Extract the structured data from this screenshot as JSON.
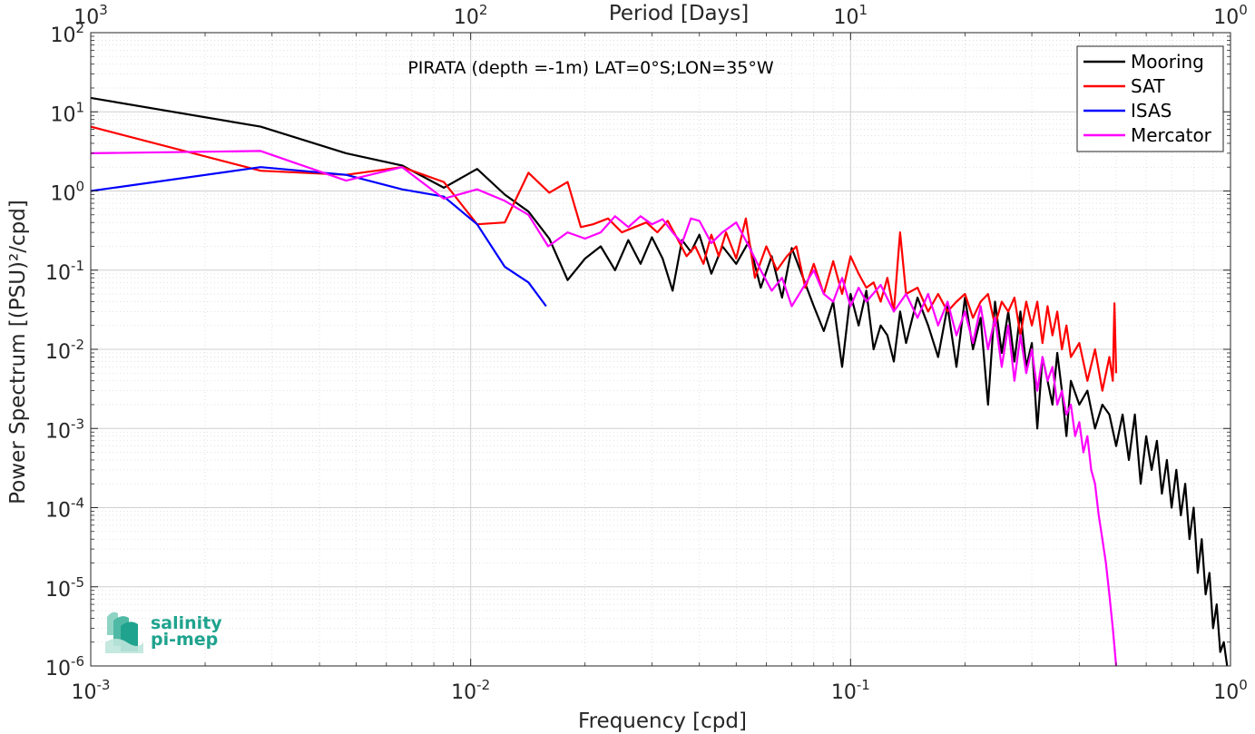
{
  "chart_data": {
    "type": "line",
    "title": "PIRATA (depth =-1m) LAT=0°S;LON=35°W",
    "xlabel": "Frequency [cpd]",
    "ylabel": "Power Spectrum [(PSU)²/cpd]",
    "top_xlabel": "Period [Days]",
    "xscale": "log",
    "yscale": "log",
    "xlim": [
      0.001,
      1
    ],
    "ylim": [
      1e-06,
      100
    ],
    "top_xlim": [
      1000,
      1
    ],
    "grid": true,
    "legend_position": "top-right",
    "x_ticks": [
      {
        "base": "10",
        "exp": "-3",
        "value": 0.001
      },
      {
        "base": "10",
        "exp": "-2",
        "value": 0.01
      },
      {
        "base": "10",
        "exp": "-1",
        "value": 0.1
      },
      {
        "base": "10",
        "exp": "0",
        "value": 1
      }
    ],
    "top_ticks": [
      {
        "base": "10",
        "exp": "3",
        "value": 1000
      },
      {
        "base": "10",
        "exp": "2",
        "value": 100
      },
      {
        "base": "10",
        "exp": "1",
        "value": 10
      },
      {
        "base": "10",
        "exp": "0",
        "value": 1
      }
    ],
    "y_ticks": [
      {
        "base": "10",
        "exp": "-6",
        "value": 1e-06
      },
      {
        "base": "10",
        "exp": "-5",
        "value": 1e-05
      },
      {
        "base": "10",
        "exp": "-4",
        "value": 0.0001
      },
      {
        "base": "10",
        "exp": "-3",
        "value": 0.001
      },
      {
        "base": "10",
        "exp": "-2",
        "value": 0.01
      },
      {
        "base": "10",
        "exp": "-1",
        "value": 0.1
      },
      {
        "base": "10",
        "exp": "0",
        "value": 1
      },
      {
        "base": "10",
        "exp": "1",
        "value": 10
      },
      {
        "base": "10",
        "exp": "2",
        "value": 100
      }
    ],
    "series": [
      {
        "name": "Mooring",
        "color": "#000000",
        "points": [
          [
            0.001,
            15
          ],
          [
            0.0028,
            6.5
          ],
          [
            0.0047,
            3.0
          ],
          [
            0.0066,
            2.1
          ],
          [
            0.0085,
            1.1
          ],
          [
            0.0104,
            1.9
          ],
          [
            0.0123,
            0.9
          ],
          [
            0.0142,
            0.55
          ],
          [
            0.0161,
            0.25
          ],
          [
            0.018,
            0.075
          ],
          [
            0.02,
            0.14
          ],
          [
            0.022,
            0.2
          ],
          [
            0.024,
            0.1
          ],
          [
            0.026,
            0.24
          ],
          [
            0.028,
            0.12
          ],
          [
            0.03,
            0.26
          ],
          [
            0.032,
            0.14
          ],
          [
            0.034,
            0.055
          ],
          [
            0.036,
            0.24
          ],
          [
            0.038,
            0.17
          ],
          [
            0.04,
            0.28
          ],
          [
            0.043,
            0.09
          ],
          [
            0.046,
            0.2
          ],
          [
            0.05,
            0.12
          ],
          [
            0.054,
            0.23
          ],
          [
            0.058,
            0.06
          ],
          [
            0.062,
            0.15
          ],
          [
            0.066,
            0.045
          ],
          [
            0.07,
            0.19
          ],
          [
            0.075,
            0.08
          ],
          [
            0.08,
            0.035
          ],
          [
            0.085,
            0.017
          ],
          [
            0.09,
            0.04
          ],
          [
            0.095,
            0.006
          ],
          [
            0.1,
            0.05
          ],
          [
            0.105,
            0.02
          ],
          [
            0.11,
            0.055
          ],
          [
            0.115,
            0.01
          ],
          [
            0.12,
            0.02
          ],
          [
            0.125,
            0.015
          ],
          [
            0.13,
            0.007
          ],
          [
            0.135,
            0.03
          ],
          [
            0.14,
            0.012
          ],
          [
            0.15,
            0.045
          ],
          [
            0.16,
            0.02
          ],
          [
            0.17,
            0.008
          ],
          [
            0.18,
            0.035
          ],
          [
            0.19,
            0.006
          ],
          [
            0.2,
            0.045
          ],
          [
            0.21,
            0.01
          ],
          [
            0.22,
            0.025
          ],
          [
            0.23,
            0.002
          ],
          [
            0.24,
            0.04
          ],
          [
            0.25,
            0.009
          ],
          [
            0.26,
            0.03
          ],
          [
            0.27,
            0.007
          ],
          [
            0.28,
            0.03
          ],
          [
            0.29,
            0.006
          ],
          [
            0.3,
            0.012
          ],
          [
            0.31,
            0.001
          ],
          [
            0.32,
            0.008
          ],
          [
            0.33,
            0.004
          ],
          [
            0.34,
            0.002
          ],
          [
            0.35,
            0.009
          ],
          [
            0.36,
            0.003
          ],
          [
            0.37,
            0.0008
          ],
          [
            0.38,
            0.004
          ],
          [
            0.4,
            0.002
          ],
          [
            0.42,
            0.003
          ],
          [
            0.44,
            0.001
          ],
          [
            0.46,
            0.002
          ],
          [
            0.48,
            0.0015
          ],
          [
            0.5,
            0.0006
          ],
          [
            0.52,
            0.0015
          ],
          [
            0.54,
            0.0004
          ],
          [
            0.56,
            0.0015
          ],
          [
            0.58,
            0.0002
          ],
          [
            0.6,
            0.0008
          ],
          [
            0.62,
            0.0003
          ],
          [
            0.64,
            0.0007
          ],
          [
            0.66,
            0.00015
          ],
          [
            0.68,
            0.0004
          ],
          [
            0.7,
            0.0001
          ],
          [
            0.72,
            0.0003
          ],
          [
            0.74,
            8e-05
          ],
          [
            0.76,
            0.0002
          ],
          [
            0.78,
            4e-05
          ],
          [
            0.8,
            0.0001
          ],
          [
            0.82,
            1.5e-05
          ],
          [
            0.84,
            4e-05
          ],
          [
            0.86,
            8e-06
          ],
          [
            0.88,
            1.5e-05
          ],
          [
            0.9,
            3e-06
          ],
          [
            0.92,
            6e-06
          ],
          [
            0.94,
            1.5e-06
          ],
          [
            0.96,
            2e-06
          ],
          [
            0.98,
            1e-06
          ]
        ]
      },
      {
        "name": "SAT",
        "color": "#ff0000",
        "points": [
          [
            0.001,
            6.5
          ],
          [
            0.0028,
            1.8
          ],
          [
            0.0047,
            1.6
          ],
          [
            0.0066,
            2.0
          ],
          [
            0.0085,
            1.3
          ],
          [
            0.0104,
            0.38
          ],
          [
            0.0123,
            0.4
          ],
          [
            0.0142,
            1.7
          ],
          [
            0.0161,
            0.95
          ],
          [
            0.018,
            1.3
          ],
          [
            0.0195,
            0.35
          ],
          [
            0.021,
            0.38
          ],
          [
            0.023,
            0.45
          ],
          [
            0.025,
            0.3
          ],
          [
            0.027,
            0.35
          ],
          [
            0.029,
            0.4
          ],
          [
            0.031,
            0.3
          ],
          [
            0.033,
            0.42
          ],
          [
            0.035,
            0.25
          ],
          [
            0.037,
            0.15
          ],
          [
            0.039,
            0.2
          ],
          [
            0.041,
            0.12
          ],
          [
            0.043,
            0.28
          ],
          [
            0.045,
            0.15
          ],
          [
            0.047,
            0.3
          ],
          [
            0.05,
            0.14
          ],
          [
            0.053,
            0.45
          ],
          [
            0.056,
            0.08
          ],
          [
            0.06,
            0.2
          ],
          [
            0.064,
            0.1
          ],
          [
            0.068,
            0.15
          ],
          [
            0.072,
            0.2
          ],
          [
            0.076,
            0.06
          ],
          [
            0.08,
            0.12
          ],
          [
            0.085,
            0.05
          ],
          [
            0.09,
            0.13
          ],
          [
            0.095,
            0.05
          ],
          [
            0.1,
            0.15
          ],
          [
            0.105,
            0.09
          ],
          [
            0.11,
            0.06
          ],
          [
            0.115,
            0.07
          ],
          [
            0.12,
            0.04
          ],
          [
            0.125,
            0.08
          ],
          [
            0.13,
            0.03
          ],
          [
            0.135,
            0.3
          ],
          [
            0.14,
            0.05
          ],
          [
            0.15,
            0.06
          ],
          [
            0.16,
            0.03
          ],
          [
            0.17,
            0.05
          ],
          [
            0.18,
            0.03
          ],
          [
            0.19,
            0.04
          ],
          [
            0.2,
            0.05
          ],
          [
            0.21,
            0.025
          ],
          [
            0.22,
            0.04
          ],
          [
            0.23,
            0.05
          ],
          [
            0.24,
            0.02
          ],
          [
            0.25,
            0.04
          ],
          [
            0.26,
            0.03
          ],
          [
            0.27,
            0.045
          ],
          [
            0.28,
            0.015
          ],
          [
            0.29,
            0.04
          ],
          [
            0.3,
            0.02
          ],
          [
            0.31,
            0.04
          ],
          [
            0.32,
            0.012
          ],
          [
            0.33,
            0.035
          ],
          [
            0.34,
            0.015
          ],
          [
            0.35,
            0.03
          ],
          [
            0.36,
            0.01
          ],
          [
            0.37,
            0.02
          ],
          [
            0.38,
            0.008
          ],
          [
            0.4,
            0.012
          ],
          [
            0.42,
            0.004
          ],
          [
            0.44,
            0.01
          ],
          [
            0.46,
            0.003
          ],
          [
            0.48,
            0.008
          ],
          [
            0.49,
            0.004
          ],
          [
            0.495,
            0.038
          ],
          [
            0.5,
            0.005
          ]
        ]
      },
      {
        "name": "ISAS",
        "color": "#0000ff",
        "points": [
          [
            0.001,
            1.0
          ],
          [
            0.0028,
            2.0
          ],
          [
            0.0047,
            1.6
          ],
          [
            0.0066,
            1.05
          ],
          [
            0.0085,
            0.85
          ],
          [
            0.0104,
            0.38
          ],
          [
            0.0123,
            0.11
          ],
          [
            0.0142,
            0.07
          ],
          [
            0.0158,
            0.035
          ]
        ]
      },
      {
        "name": "Mercator",
        "color": "#ff00ff",
        "points": [
          [
            0.001,
            3.0
          ],
          [
            0.0028,
            3.2
          ],
          [
            0.0047,
            1.35
          ],
          [
            0.0066,
            2.0
          ],
          [
            0.0085,
            0.8
          ],
          [
            0.0104,
            1.05
          ],
          [
            0.0123,
            0.75
          ],
          [
            0.0142,
            0.5
          ],
          [
            0.016,
            0.2
          ],
          [
            0.018,
            0.3
          ],
          [
            0.02,
            0.25
          ],
          [
            0.022,
            0.3
          ],
          [
            0.024,
            0.48
          ],
          [
            0.026,
            0.35
          ],
          [
            0.028,
            0.48
          ],
          [
            0.03,
            0.38
          ],
          [
            0.032,
            0.44
          ],
          [
            0.034,
            0.3
          ],
          [
            0.036,
            0.22
          ],
          [
            0.038,
            0.45
          ],
          [
            0.04,
            0.42
          ],
          [
            0.043,
            0.22
          ],
          [
            0.046,
            0.3
          ],
          [
            0.05,
            0.4
          ],
          [
            0.054,
            0.2
          ],
          [
            0.058,
            0.1
          ],
          [
            0.062,
            0.055
          ],
          [
            0.066,
            0.08
          ],
          [
            0.07,
            0.035
          ],
          [
            0.075,
            0.06
          ],
          [
            0.08,
            0.1
          ],
          [
            0.085,
            0.05
          ],
          [
            0.09,
            0.04
          ],
          [
            0.095,
            0.08
          ],
          [
            0.1,
            0.035
          ],
          [
            0.105,
            0.06
          ],
          [
            0.11,
            0.04
          ],
          [
            0.12,
            0.065
          ],
          [
            0.13,
            0.03
          ],
          [
            0.14,
            0.05
          ],
          [
            0.15,
            0.025
          ],
          [
            0.16,
            0.05
          ],
          [
            0.17,
            0.02
          ],
          [
            0.18,
            0.04
          ],
          [
            0.19,
            0.015
          ],
          [
            0.2,
            0.03
          ],
          [
            0.21,
            0.012
          ],
          [
            0.22,
            0.035
          ],
          [
            0.23,
            0.01
          ],
          [
            0.24,
            0.025
          ],
          [
            0.25,
            0.006
          ],
          [
            0.26,
            0.02
          ],
          [
            0.27,
            0.004
          ],
          [
            0.28,
            0.015
          ],
          [
            0.29,
            0.005
          ],
          [
            0.3,
            0.01
          ],
          [
            0.31,
            0.003
          ],
          [
            0.32,
            0.008
          ],
          [
            0.33,
            0.004
          ],
          [
            0.34,
            0.006
          ],
          [
            0.35,
            0.002
          ],
          [
            0.36,
            0.003
          ],
          [
            0.37,
            0.0015
          ],
          [
            0.38,
            0.002
          ],
          [
            0.39,
            0.0008
          ],
          [
            0.4,
            0.0012
          ],
          [
            0.41,
            0.0005
          ],
          [
            0.42,
            0.0008
          ],
          [
            0.43,
            0.0003
          ],
          [
            0.44,
            0.0002
          ],
          [
            0.45,
            8e-05
          ],
          [
            0.46,
            4e-05
          ],
          [
            0.47,
            2e-05
          ],
          [
            0.48,
            8e-06
          ],
          [
            0.49,
            3e-06
          ],
          [
            0.5,
            1e-06
          ]
        ]
      }
    ]
  },
  "logo": {
    "line1": "salinity",
    "line2": "pi-mep",
    "color": "#1fa38e"
  }
}
